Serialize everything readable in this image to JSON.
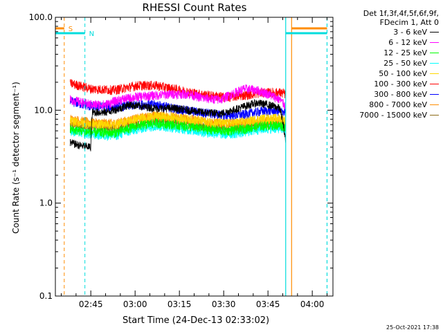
{
  "chart_data": {
    "type": "line",
    "title": "RHESSI Count Rates",
    "xlabel": "Start Time (24-Dec-13 02:33:02)",
    "ylabel": "Count Rate (s⁻¹ detector segment⁻¹)",
    "yscale": "log",
    "ylim": [
      0.1,
      100.0
    ],
    "xlim_minutes": [
      0,
      94
    ],
    "ytick_labels": [
      "0.1",
      "1.0",
      "10.0",
      "100.0"
    ],
    "ytick_values": [
      0.1,
      1.0,
      10.0,
      100.0
    ],
    "xtick_labels": [
      "02:45",
      "03:00",
      "03:15",
      "03:30",
      "03:45",
      "04:00"
    ],
    "xtick_minutes": [
      12,
      27,
      42,
      57,
      72,
      87
    ],
    "data_start_minute": 5,
    "data_end_minute": 78,
    "series": [
      {
        "name": "3 - 6 keV",
        "color": "#000000",
        "t": [
          5,
          8,
          12,
          12.5,
          17,
          22,
          25,
          29,
          34,
          40,
          45,
          50,
          56,
          60,
          64,
          68,
          72,
          76,
          78
        ],
        "values": [
          4.5,
          4.2,
          4.0,
          9.5,
          9.5,
          10.5,
          11.5,
          11,
          10.5,
          10.5,
          10,
          9.5,
          9.2,
          10,
          11,
          12,
          11.5,
          10.5,
          4.5
        ]
      },
      {
        "name": "6 - 12 keV",
        "color": "#ff00ff",
        "t": [
          5,
          12,
          17,
          22,
          28,
          34,
          40,
          45,
          50,
          56,
          60,
          64,
          68,
          72,
          76,
          78
        ],
        "values": [
          13,
          11.5,
          11.5,
          13,
          14,
          14.5,
          15,
          15,
          13.5,
          13,
          15,
          17,
          16.5,
          15,
          13,
          11
        ]
      },
      {
        "name": "12 - 25 keV",
        "color": "#00ff00",
        "t": [
          5,
          12,
          20,
          28,
          34,
          40,
          46,
          52,
          58,
          64,
          70,
          76,
          78
        ],
        "values": [
          6.2,
          5.8,
          5.7,
          6.8,
          7.3,
          7.0,
          6.6,
          6.2,
          6.0,
          6.3,
          6.8,
          6.9,
          6.6
        ]
      },
      {
        "name": "25 - 50 keV",
        "color": "#00ffff",
        "t": [
          5,
          12,
          20,
          28,
          34,
          40,
          46,
          52,
          58,
          64,
          70,
          76,
          78
        ],
        "values": [
          6.0,
          5.5,
          5.3,
          6.3,
          6.8,
          6.5,
          6.1,
          5.7,
          5.5,
          5.8,
          6.3,
          6.4,
          6.1
        ]
      },
      {
        "name": "50 - 100 keV",
        "color": "#ffd700",
        "t": [
          5,
          12,
          20,
          28,
          34,
          40,
          46,
          52,
          58,
          64,
          70,
          76,
          78
        ],
        "values": [
          7.6,
          7.1,
          7.0,
          8.1,
          8.6,
          8.3,
          7.9,
          7.4,
          7.2,
          7.5,
          8.1,
          8.2,
          7.8
        ]
      },
      {
        "name": "100 - 300 keV",
        "color": "#ff0000",
        "t": [
          5,
          12,
          20,
          28,
          34,
          40,
          46,
          52,
          58,
          64,
          70,
          76,
          78
        ],
        "values": [
          19.5,
          17,
          16.5,
          18.5,
          18.5,
          17,
          15.5,
          14.5,
          13.8,
          14.5,
          15.5,
          15.5,
          15
        ]
      },
      {
        "name": "300 - 800 keV",
        "color": "#0000ff",
        "t": [
          5,
          12,
          20,
          28,
          34,
          40,
          46,
          52,
          58,
          64,
          70,
          76,
          78
        ],
        "values": [
          12.5,
          11,
          10.8,
          11.5,
          11.5,
          10.5,
          9.8,
          9.3,
          8.8,
          9.0,
          9.8,
          9.8,
          9.5
        ]
      },
      {
        "name": "800 - 7000 keV",
        "color": "#ff8c00",
        "t": [
          5,
          12,
          20,
          28,
          34,
          40,
          46,
          52,
          58,
          64,
          70,
          76,
          78
        ],
        "values": [
          8.0,
          7.4,
          7.2,
          8.2,
          8.8,
          8.5,
          8.0,
          7.5,
          7.2,
          7.3,
          7.6,
          7.6,
          7.3
        ]
      },
      {
        "name": "7000 - 15000 keV",
        "color": "#8b6914",
        "t": [
          5,
          12,
          20,
          28,
          34,
          40,
          46,
          52,
          58,
          64,
          70,
          76,
          78
        ],
        "values": [
          7.0,
          6.5,
          6.3,
          7.2,
          7.7,
          7.4,
          7.0,
          6.6,
          6.4,
          6.5,
          6.9,
          6.9,
          6.6
        ]
      }
    ],
    "markers": [
      {
        "label": "S",
        "color": "#ff8c00",
        "minute": 3,
        "style": "dashed"
      },
      {
        "label": "N",
        "color": "#00dddd",
        "minute": 10,
        "style": "dashed"
      }
    ],
    "right_markers": [
      {
        "color": "#00dddd",
        "minute": 78,
        "style": "solid"
      },
      {
        "color": "#ff8c00",
        "minute": 80,
        "style": "solid"
      },
      {
        "color": "#00dddd",
        "minute": 92,
        "style": "dashed"
      }
    ]
  },
  "legend": {
    "header": [
      "Det 1f,3f,4f,5f,6f,9f,",
      "FDecim 1, Att 0"
    ]
  },
  "footer": {
    "timestamp": "25-Oct-2021 17:38"
  }
}
